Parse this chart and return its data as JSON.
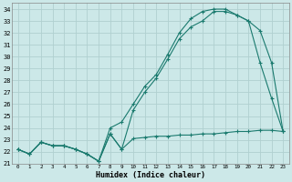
{
  "xlabel": "Humidex (Indice chaleur)",
  "bg_color": "#cce8e8",
  "grid_color": "#b0d0d0",
  "line_color": "#1a7a6e",
  "xlim": [
    -0.5,
    23.5
  ],
  "ylim": [
    21,
    34.5
  ],
  "yticks": [
    21,
    22,
    23,
    24,
    25,
    26,
    27,
    28,
    29,
    30,
    31,
    32,
    33,
    34
  ],
  "xticks": [
    0,
    1,
    2,
    3,
    4,
    5,
    6,
    7,
    8,
    9,
    10,
    11,
    12,
    13,
    14,
    15,
    16,
    17,
    18,
    19,
    20,
    21,
    22,
    23
  ],
  "line1_x": [
    0,
    1,
    2,
    3,
    4,
    5,
    6,
    7,
    8,
    9,
    10,
    11,
    12,
    13,
    14,
    15,
    16,
    17,
    18,
    19,
    20,
    21,
    22,
    23
  ],
  "line1_y": [
    22.2,
    21.8,
    22.8,
    22.5,
    22.5,
    22.2,
    21.8,
    21.2,
    23.5,
    22.2,
    23.1,
    23.2,
    23.3,
    23.3,
    23.4,
    23.4,
    23.5,
    23.5,
    23.6,
    23.7,
    23.7,
    23.8,
    23.8,
    23.7
  ],
  "line2_x": [
    0,
    1,
    2,
    3,
    4,
    5,
    6,
    7,
    8,
    9,
    10,
    11,
    12,
    13,
    14,
    15,
    16,
    17,
    18,
    19,
    20,
    21,
    22,
    23
  ],
  "line2_y": [
    22.2,
    21.8,
    22.8,
    22.5,
    22.5,
    22.2,
    21.8,
    21.2,
    23.5,
    22.2,
    25.5,
    27.0,
    28.2,
    29.8,
    31.5,
    32.5,
    33.0,
    33.8,
    33.8,
    33.5,
    33.0,
    32.2,
    29.5,
    23.7
  ],
  "line3_x": [
    0,
    1,
    2,
    3,
    4,
    5,
    6,
    7,
    8,
    9,
    10,
    11,
    12,
    13,
    14,
    15,
    16,
    17,
    18,
    19,
    20,
    21,
    22,
    23
  ],
  "line3_y": [
    22.2,
    21.8,
    22.8,
    22.5,
    22.5,
    22.2,
    21.8,
    21.2,
    24.0,
    24.5,
    26.0,
    27.5,
    28.5,
    30.2,
    32.0,
    33.2,
    33.8,
    34.0,
    34.0,
    33.5,
    33.0,
    29.5,
    26.5,
    23.7
  ]
}
